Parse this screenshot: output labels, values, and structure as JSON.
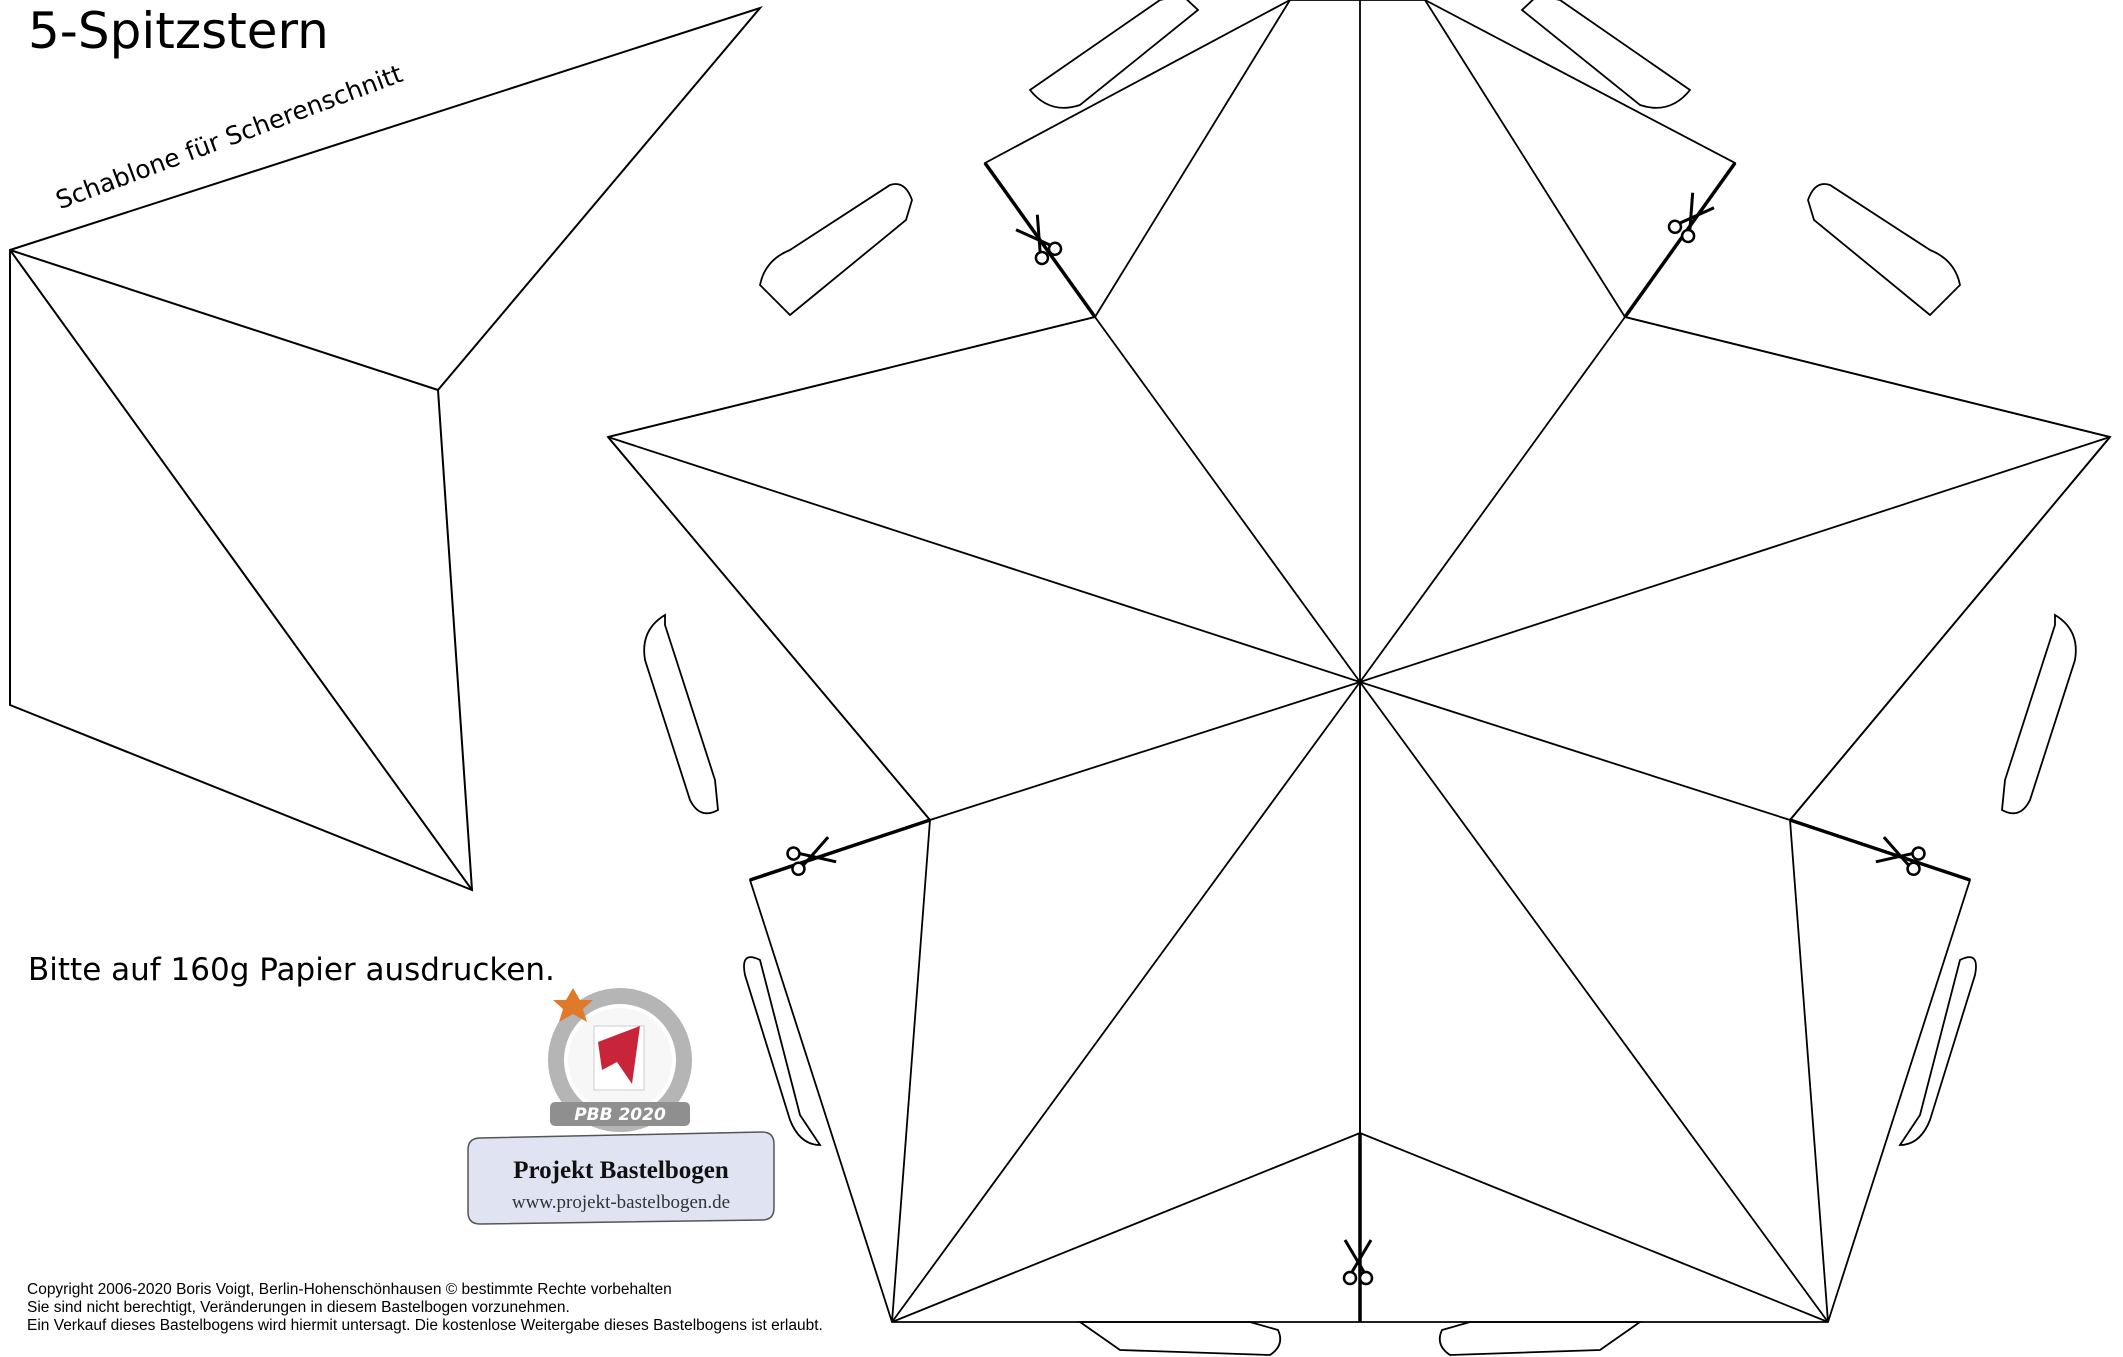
{
  "title": "5-Spitzstern",
  "template_label": "Schablone für Scherenschnitt",
  "print_note": "Bitte auf 160g Papier ausdrucken.",
  "logo": {
    "badge": "PBB 2020",
    "name": "Projekt Bastelbogen",
    "url": "www.projekt-bastelbogen.de"
  },
  "copyright": [
    "Copyright  2006-2020 Boris Voigt, Berlin-Hohenschönhausen    © bestimmte Rechte vorbehalten",
    "Sie sind nicht berechtigt, Veränderungen in diesem Bastelbogen vorzunehmen.",
    "Ein Verkauf dieses Bastelbogens wird hiermit untersagt. Die kostenlose Weitergabe dieses Bastelbogens ist erlaubt."
  ],
  "icons": [
    "scissors-icon",
    "logo-emblem"
  ],
  "colors": {
    "line": "#000000",
    "logo_red": "#c8243a",
    "logo_ring": "#b5b5b5",
    "banner": "#dfe3f2"
  }
}
